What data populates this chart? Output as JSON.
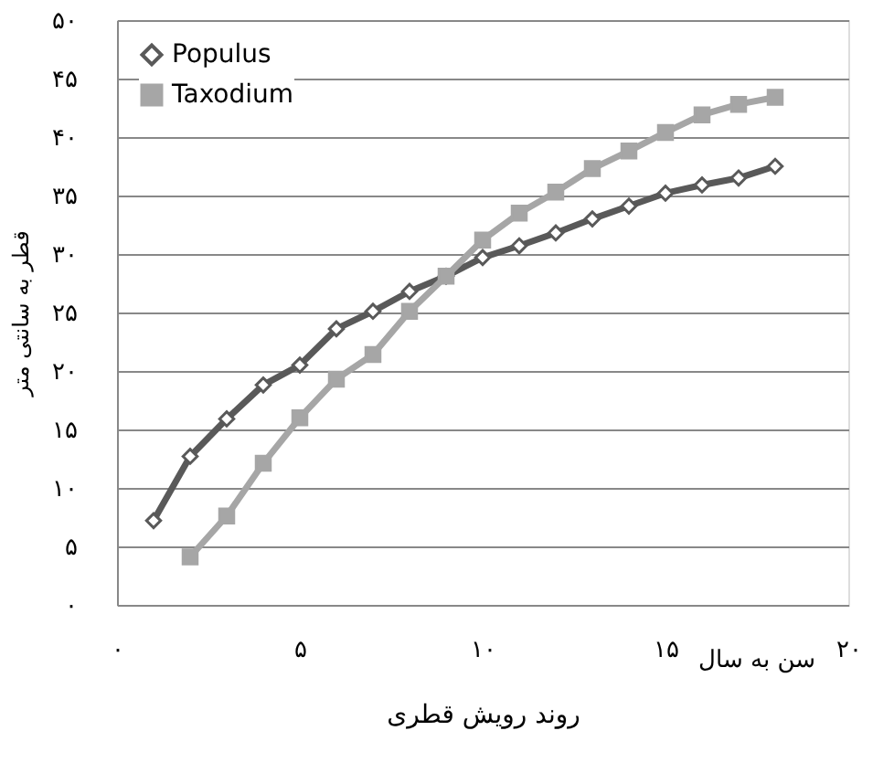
{
  "chart_data": {
    "type": "line",
    "xlabel": "روند رویش قطری",
    "ylabel": "قطر به سانتی متر",
    "annotations": [
      "سن به سال"
    ],
    "xlim": [
      0,
      20
    ],
    "xticks": [
      {
        "value": 0,
        "label": "۰"
      },
      {
        "value": 5,
        "label": "۵"
      },
      {
        "value": 10,
        "label": "۱۰"
      },
      {
        "value": 15,
        "label": "۱۵"
      },
      {
        "value": 20,
        "label": "۲۰"
      }
    ],
    "ylim": [
      0,
      50
    ],
    "yticks": [
      {
        "value": 0,
        "label": "۰"
      },
      {
        "value": 5,
        "label": "۵"
      },
      {
        "value": 10,
        "label": "۱۰"
      },
      {
        "value": 15,
        "label": "۱۵"
      },
      {
        "value": 20,
        "label": "۲۰"
      },
      {
        "value": 25,
        "label": "۲۵"
      },
      {
        "value": 30,
        "label": "۳۰"
      },
      {
        "value": 35,
        "label": "۳۵"
      },
      {
        "value": 40,
        "label": "۴۰"
      },
      {
        "value": 45,
        "label": "۴۵"
      },
      {
        "value": 50,
        "label": "۵۰"
      }
    ],
    "grid": "y",
    "legend": "top left",
    "line_style": "solid",
    "series": [
      {
        "name": "Populus",
        "color": "#595959",
        "marker": "diamond",
        "x": [
          1,
          2,
          3,
          4,
          5,
          6,
          7,
          8,
          9,
          10,
          11,
          12,
          13,
          14,
          15,
          16,
          17,
          18
        ],
        "values": [
          7.2,
          12.7,
          15.9,
          18.8,
          20.5,
          23.6,
          25.1,
          26.8,
          28.1,
          29.7,
          30.7,
          31.8,
          33.0,
          34.1,
          35.2,
          35.9,
          36.5,
          37.5
        ]
      },
      {
        "name": "Taxodium",
        "color": "#a6a6a6",
        "marker": "square",
        "x": [
          2,
          3,
          4,
          5,
          6,
          7,
          8,
          9,
          10,
          11,
          12,
          13,
          14,
          15,
          16,
          17,
          18
        ],
        "values": [
          4.1,
          7.6,
          12.1,
          16.0,
          19.3,
          21.4,
          25.1,
          28.1,
          31.2,
          33.5,
          35.3,
          37.3,
          38.8,
          40.4,
          41.9,
          42.8,
          43.4
        ]
      }
    ]
  }
}
